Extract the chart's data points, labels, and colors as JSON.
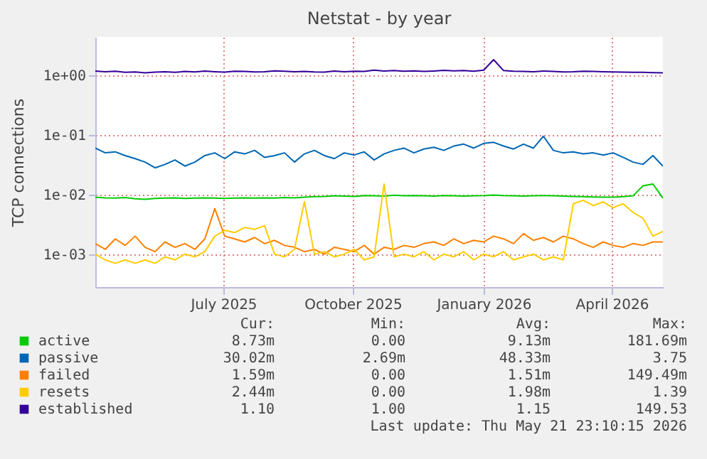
{
  "chart_data": {
    "type": "line",
    "title": "Netstat - by year",
    "ylabel": "TCP connections",
    "log": true,
    "grid": true,
    "legend": "bottom",
    "xlim": [
      "2025-04-17",
      "2026-05-21"
    ],
    "xticks": [
      {
        "value": "2025-07-16",
        "label": "July 2025"
      },
      {
        "value": "2025-10-15",
        "label": "October 2025"
      },
      {
        "value": "2026-01-15",
        "label": "January 2026"
      },
      {
        "value": "2026-04-15",
        "label": "April 2026"
      }
    ],
    "ylim": [
      0.00028,
      4.4
    ],
    "yticks": [
      {
        "value": 0.001,
        "label": "1e-03"
      },
      {
        "value": 0.01,
        "label": "1e-02"
      },
      {
        "value": 0.1,
        "label": "1e-01"
      },
      {
        "value": 1,
        "label": "1e+00"
      }
    ],
    "x": [
      "2025-04-17",
      "2025-04-24",
      "2025-05-01",
      "2025-05-08",
      "2025-05-15",
      "2025-05-22",
      "2025-05-29",
      "2025-06-05",
      "2025-06-12",
      "2025-06-19",
      "2025-06-26",
      "2025-07-03",
      "2025-07-10",
      "2025-07-17",
      "2025-07-24",
      "2025-07-31",
      "2025-08-07",
      "2025-08-14",
      "2025-08-21",
      "2025-08-28",
      "2025-09-04",
      "2025-09-11",
      "2025-09-18",
      "2025-09-25",
      "2025-10-02",
      "2025-10-09",
      "2025-10-16",
      "2025-10-23",
      "2025-10-30",
      "2025-11-06",
      "2025-11-13",
      "2025-11-20",
      "2025-11-27",
      "2025-12-04",
      "2025-12-11",
      "2025-12-18",
      "2025-12-25",
      "2026-01-01",
      "2026-01-08",
      "2026-01-15",
      "2026-01-22",
      "2026-01-29",
      "2026-02-05",
      "2026-02-12",
      "2026-02-19",
      "2026-02-26",
      "2026-03-05",
      "2026-03-12",
      "2026-03-19",
      "2026-03-26",
      "2026-04-02",
      "2026-04-09",
      "2026-04-16",
      "2026-04-23",
      "2026-04-30",
      "2026-05-07",
      "2026-05-14",
      "2026-05-21"
    ],
    "series": [
      {
        "name": "active",
        "color": "#00cc00",
        "values": [
          0.009,
          0.0088,
          0.0087,
          0.0089,
          0.0085,
          0.0083,
          0.0086,
          0.0087,
          0.0088,
          0.0086,
          0.0087,
          0.0088,
          0.0087,
          0.0086,
          0.0087,
          0.0088,
          0.0087,
          0.0088,
          0.0087,
          0.0089,
          0.0088,
          0.009,
          0.0092,
          0.0093,
          0.0095,
          0.0094,
          0.0093,
          0.0096,
          0.0095,
          0.0094,
          0.0097,
          0.0095,
          0.0096,
          0.0095,
          0.0094,
          0.0096,
          0.0095,
          0.0094,
          0.0095,
          0.0096,
          0.0098,
          0.0096,
          0.0095,
          0.0094,
          0.0095,
          0.0096,
          0.0095,
          0.0094,
          0.0093,
          0.0092,
          0.0091,
          0.009,
          0.009,
          0.0092,
          0.0095,
          0.014,
          0.015,
          0.0087
        ]
      },
      {
        "name": "passive",
        "color": "#0066b3",
        "values": [
          0.06,
          0.05,
          0.052,
          0.045,
          0.04,
          0.035,
          0.028,
          0.032,
          0.038,
          0.03,
          0.035,
          0.045,
          0.05,
          0.04,
          0.052,
          0.048,
          0.055,
          0.042,
          0.045,
          0.05,
          0.035,
          0.048,
          0.055,
          0.045,
          0.04,
          0.05,
          0.046,
          0.052,
          0.038,
          0.048,
          0.055,
          0.06,
          0.05,
          0.058,
          0.062,
          0.055,
          0.065,
          0.07,
          0.06,
          0.072,
          0.075,
          0.065,
          0.058,
          0.07,
          0.06,
          0.095,
          0.055,
          0.05,
          0.052,
          0.048,
          0.05,
          0.046,
          0.05,
          0.042,
          0.035,
          0.032,
          0.045,
          0.03
        ]
      },
      {
        "name": "failed",
        "color": "#ff8000",
        "values": [
          0.0015,
          0.0012,
          0.0018,
          0.0014,
          0.002,
          0.0013,
          0.0011,
          0.0016,
          0.0013,
          0.0015,
          0.0012,
          0.0018,
          0.0058,
          0.002,
          0.0018,
          0.0016,
          0.0019,
          0.0015,
          0.0017,
          0.0014,
          0.0013,
          0.0011,
          0.0012,
          0.001,
          0.0013,
          0.0012,
          0.0011,
          0.0014,
          0.001,
          0.0013,
          0.0012,
          0.0014,
          0.0013,
          0.0015,
          0.0016,
          0.0014,
          0.0018,
          0.0015,
          0.0017,
          0.0016,
          0.002,
          0.0018,
          0.0015,
          0.0022,
          0.0017,
          0.0019,
          0.0016,
          0.002,
          0.0018,
          0.0015,
          0.0013,
          0.0016,
          0.0014,
          0.0013,
          0.0015,
          0.0014,
          0.0016,
          0.0016
        ]
      },
      {
        "name": "resets",
        "color": "#ffcc00",
        "values": [
          0.001,
          0.0008,
          0.0007,
          0.0008,
          0.0007,
          0.0008,
          0.0007,
          0.0009,
          0.0008,
          0.001,
          0.0009,
          0.0011,
          0.002,
          0.0025,
          0.0023,
          0.0028,
          0.0026,
          0.003,
          0.001,
          0.0009,
          0.0012,
          0.0076,
          0.001,
          0.0011,
          0.0009,
          0.001,
          0.0012,
          0.0008,
          0.0009,
          0.015,
          0.0009,
          0.001,
          0.0009,
          0.0011,
          0.0008,
          0.001,
          0.0009,
          0.0011,
          0.0008,
          0.001,
          0.0009,
          0.0011,
          0.0008,
          0.0009,
          0.001,
          0.0008,
          0.0009,
          0.0008,
          0.007,
          0.008,
          0.0065,
          0.0075,
          0.006,
          0.007,
          0.005,
          0.004,
          0.002,
          0.0024
        ]
      },
      {
        "name": "established",
        "color": "#330099",
        "values": [
          1.18,
          1.15,
          1.17,
          1.12,
          1.14,
          1.1,
          1.13,
          1.15,
          1.12,
          1.16,
          1.14,
          1.18,
          1.15,
          1.13,
          1.17,
          1.16,
          1.14,
          1.15,
          1.19,
          1.17,
          1.15,
          1.16,
          1.14,
          1.13,
          1.18,
          1.15,
          1.17,
          1.16,
          1.22,
          1.18,
          1.2,
          1.17,
          1.19,
          1.16,
          1.18,
          1.21,
          1.19,
          1.2,
          1.17,
          1.22,
          1.83,
          1.2,
          1.17,
          1.16,
          1.15,
          1.18,
          1.16,
          1.14,
          1.15,
          1.17,
          1.16,
          1.15,
          1.14,
          1.13,
          1.12,
          1.12,
          1.11,
          1.1
        ]
      }
    ],
    "annotations": [
      "Cur:",
      "Min:",
      "Avg:",
      "Max:",
      "8.73m",
      "0.00",
      "9.13m",
      "181.69m",
      "30.02m",
      "2.69m",
      "48.33m",
      "3.75",
      "1.59m",
      "0.00",
      "1.51m",
      "149.49m",
      "2.44m",
      "0.00",
      "1.98m",
      "1.39",
      "1.10",
      "1.00",
      "1.15",
      "149.53",
      "Last update: Thu May 21 23:10:15 2026"
    ]
  }
}
